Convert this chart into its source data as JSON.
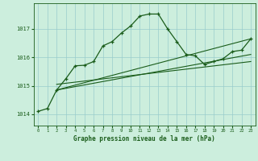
{
  "title": "Graphe pression niveau de la mer (hPa)",
  "bg_color": "#cceedd",
  "line_color": "#1a5c1a",
  "xlim": [
    -0.5,
    23.5
  ],
  "ylim": [
    1013.6,
    1017.9
  ],
  "yticks": [
    1014,
    1015,
    1016,
    1017
  ],
  "xticks": [
    0,
    1,
    2,
    3,
    4,
    5,
    6,
    7,
    8,
    9,
    10,
    11,
    12,
    13,
    14,
    15,
    16,
    17,
    18,
    19,
    20,
    21,
    22,
    23
  ],
  "series_main": [
    [
      0,
      1014.1
    ],
    [
      1,
      1014.2
    ],
    [
      2,
      1014.85
    ],
    [
      3,
      1015.25
    ],
    [
      4,
      1015.7
    ],
    [
      5,
      1015.72
    ],
    [
      6,
      1015.85
    ],
    [
      7,
      1016.4
    ],
    [
      8,
      1016.55
    ],
    [
      9,
      1016.85
    ],
    [
      10,
      1017.1
    ],
    [
      11,
      1017.45
    ],
    [
      12,
      1017.52
    ],
    [
      13,
      1017.52
    ],
    [
      14,
      1017.0
    ],
    [
      15,
      1016.55
    ],
    [
      16,
      1016.1
    ],
    [
      17,
      1016.05
    ],
    [
      18,
      1015.75
    ],
    [
      19,
      1015.85
    ],
    [
      20,
      1015.95
    ],
    [
      21,
      1016.2
    ],
    [
      22,
      1016.25
    ],
    [
      23,
      1016.65
    ]
  ],
  "trend_line1": [
    [
      2,
      1014.85
    ],
    [
      23,
      1016.65
    ]
  ],
  "trend_line2": [
    [
      2,
      1014.85
    ],
    [
      23,
      1016.1
    ]
  ],
  "trend_line3": [
    [
      2,
      1015.05
    ],
    [
      23,
      1015.85
    ]
  ]
}
